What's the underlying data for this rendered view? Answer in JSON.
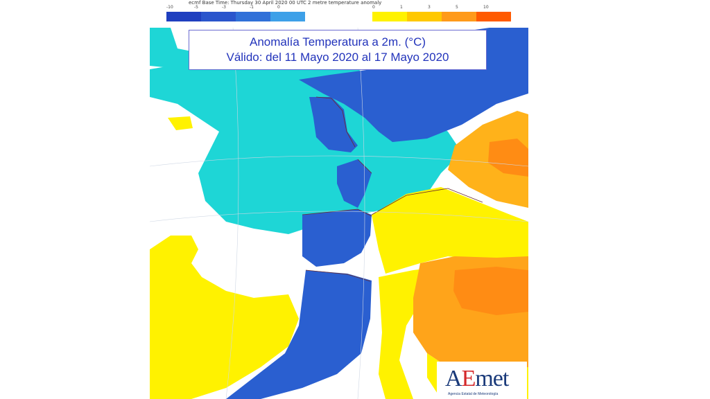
{
  "header": {
    "caption": "ecmf  Base Time: Thursday 30 April 2020 00 UTC 2 metre temperature anomaly"
  },
  "legend": {
    "cold": {
      "ticks": [
        "-10",
        "-5",
        "-3",
        "-1",
        "0"
      ],
      "colors": [
        "#1f3fbf",
        "#2a55cc",
        "#3070d8",
        "#3da0e8"
      ]
    },
    "warm": {
      "ticks": [
        "0",
        "1",
        "3",
        "5",
        "10"
      ],
      "colors": [
        "#fff200",
        "#ffc800",
        "#ff9a1a",
        "#ff5a00"
      ]
    }
  },
  "title": {
    "line1": "Anomalía Temperatura a 2m. (°C)",
    "line2": "Válido: del 11 Mayo 2020 al 17 Mayo 2020"
  },
  "logo": {
    "text_a": "A",
    "text_e": "E",
    "text_rest": "met",
    "subtitle": "Agencia Estatal de Meteorología"
  },
  "colors": {
    "cyan": "#1ed6d6",
    "blue": "#2a5fd0",
    "dark_blue": "#1f45b8",
    "yellow": "#fff200",
    "light_orange": "#ffc21a",
    "orange": "#ff9e1a",
    "deep_orange": "#ff7a12",
    "white": "#ffffff"
  }
}
